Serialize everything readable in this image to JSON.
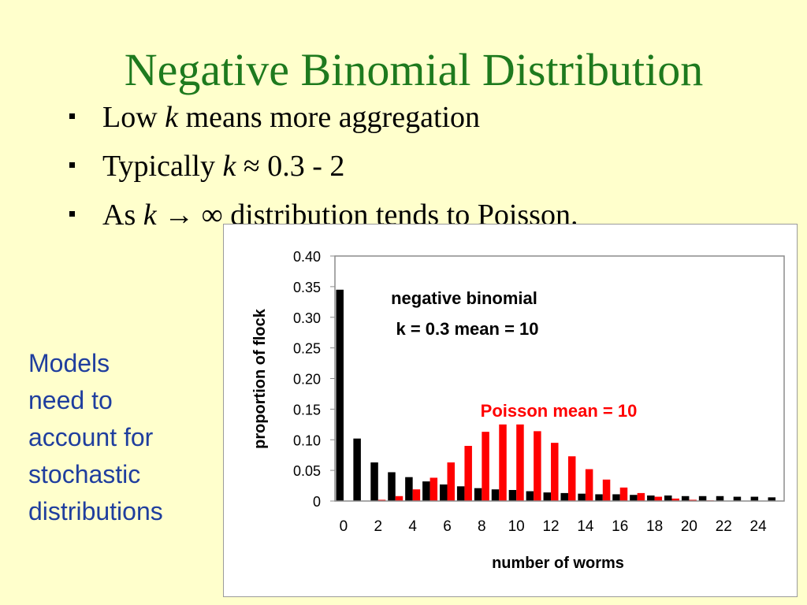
{
  "slide": {
    "title": "Negative Binomial Distribution",
    "bullets": [
      {
        "pre": "Low ",
        "k": "k",
        "post": " means more aggregation"
      },
      {
        "pre": " Typically ",
        "k": "k",
        "post": " ≈ 0.3 - 2"
      },
      {
        "pre": "As ",
        "k": "k",
        "post": " → ∞ distribution tends to Poisson."
      }
    ],
    "side_note": [
      "Models",
      "need to",
      "account for",
      "stochastic",
      "distributions"
    ],
    "colors": {
      "background": "#FFFFCC",
      "title": "#1E7A1E",
      "side_note": "#1F3E9E"
    }
  },
  "chart_data": {
    "type": "bar",
    "xlabel": "number of worms",
    "ylabel": "proportion of flock",
    "ylim": [
      0,
      0.4
    ],
    "yticks": [
      "0",
      "0.05",
      "0.10",
      "0.15",
      "0.20",
      "0.25",
      "0.30",
      "0.35",
      "0.40"
    ],
    "xticks": [
      "0",
      "2",
      "4",
      "6",
      "8",
      "10",
      "12",
      "14",
      "16",
      "18",
      "20",
      "22",
      "24"
    ],
    "grid": false,
    "annotations": [
      "negative binomial",
      "k = 0.3 mean = 10",
      "Poisson mean = 10"
    ],
    "categories": [
      0,
      1,
      2,
      3,
      4,
      5,
      6,
      7,
      8,
      9,
      10,
      11,
      12,
      13,
      14,
      15,
      16,
      17,
      18,
      19,
      20,
      21,
      22,
      23,
      24,
      25
    ],
    "series": [
      {
        "color": "#000000",
        "values": [
          0.345,
          0.102,
          0.063,
          0.047,
          0.039,
          0.032,
          0.027,
          0.024,
          0.021,
          0.019,
          0.018,
          0.016,
          0.014,
          0.013,
          0.012,
          0.011,
          0.011,
          0.01,
          0.009,
          0.009,
          0.008,
          0.008,
          0.008,
          0.007,
          0.007,
          0.006
        ]
      },
      {
        "color": "#FF0000",
        "values": [
          0.0,
          0.0,
          0.002,
          0.008,
          0.019,
          0.038,
          0.063,
          0.09,
          0.113,
          0.125,
          0.125,
          0.114,
          0.095,
          0.073,
          0.052,
          0.035,
          0.022,
          0.013,
          0.007,
          0.004,
          0.002,
          0.001,
          0.0,
          0.0,
          0.0,
          0.0
        ]
      }
    ]
  }
}
